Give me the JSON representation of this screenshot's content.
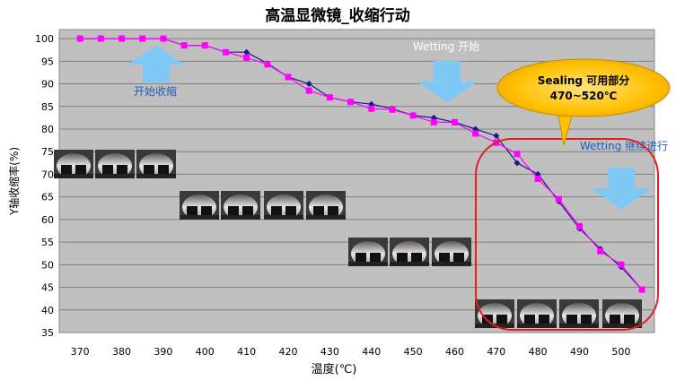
{
  "chart_data": {
    "type": "line",
    "title": "高温显微镜_收缩行动",
    "xlabel": "温度(℃)",
    "ylabel": "Y轴收缩率(%)",
    "xlim": [
      365,
      508
    ],
    "ylim": [
      35,
      102
    ],
    "x_ticks": [
      370,
      380,
      390,
      400,
      410,
      420,
      430,
      440,
      450,
      460,
      470,
      480,
      490,
      500
    ],
    "y_ticks": [
      35,
      40,
      45,
      50,
      55,
      60,
      65,
      70,
      75,
      80,
      85,
      90,
      95,
      100
    ],
    "grid": true,
    "plot_background": "#c0c0c0",
    "series": [
      {
        "marker": "diamond",
        "color": "#1a1a8c",
        "points": [
          [
            370,
            100
          ],
          [
            375,
            100
          ],
          [
            380,
            100
          ],
          [
            385,
            100
          ],
          [
            390,
            100
          ],
          [
            395,
            98.5
          ],
          [
            400,
            98.5
          ],
          [
            405,
            97
          ],
          [
            410,
            97
          ],
          [
            415,
            94.5
          ],
          [
            420,
            91.5
          ],
          [
            425,
            90
          ],
          [
            430,
            87
          ],
          [
            435,
            86
          ],
          [
            440,
            85.5
          ],
          [
            445,
            84.5
          ],
          [
            450,
            83
          ],
          [
            455,
            82.5
          ],
          [
            460,
            81.5
          ],
          [
            465,
            80
          ],
          [
            470,
            78.5
          ],
          [
            475,
            72.5
          ],
          [
            480,
            70
          ],
          [
            485,
            64
          ],
          [
            490,
            58
          ],
          [
            495,
            53.5
          ],
          [
            500,
            49.5
          ],
          [
            505,
            44.5
          ]
        ]
      },
      {
        "marker": "square",
        "color": "#ff00ff",
        "points": [
          [
            370,
            100
          ],
          [
            375,
            100
          ],
          [
            380,
            100
          ],
          [
            385,
            100
          ],
          [
            390,
            100
          ],
          [
            395,
            98.5
          ],
          [
            400,
            98.5
          ],
          [
            405,
            97
          ],
          [
            410,
            95.8
          ],
          [
            415,
            94.3
          ],
          [
            420,
            91.5
          ],
          [
            425,
            88.5
          ],
          [
            430,
            87
          ],
          [
            435,
            86
          ],
          [
            440,
            84.5
          ],
          [
            445,
            84.3
          ],
          [
            450,
            83
          ],
          [
            455,
            81.5
          ],
          [
            460,
            81.5
          ],
          [
            465,
            79
          ],
          [
            470,
            77
          ],
          [
            475,
            74.5
          ],
          [
            480,
            69
          ],
          [
            485,
            64.5
          ],
          [
            490,
            58.5
          ],
          [
            495,
            53
          ],
          [
            500,
            50
          ],
          [
            505,
            44.5
          ]
        ]
      }
    ],
    "annotations": [
      {
        "text": "开始收缩",
        "color": "#1f5fbf",
        "arrow": "up",
        "arrow_color": "#7ec8f5"
      },
      {
        "text": "Wetting 开始",
        "color": "#ffffff",
        "arrow": "down",
        "arrow_color": "#7ec8f5"
      },
      {
        "text": "Wetting 继续进行",
        "color": "#1f5fbf",
        "arrow": "down",
        "arrow_color": "#7ec8f5"
      },
      {
        "text": "Sealing  可用部分",
        "text2": "470~520℃",
        "color": "#000000",
        "callout_color": "#ffc000"
      }
    ],
    "highlight_ellipse_color": "#e02020"
  }
}
